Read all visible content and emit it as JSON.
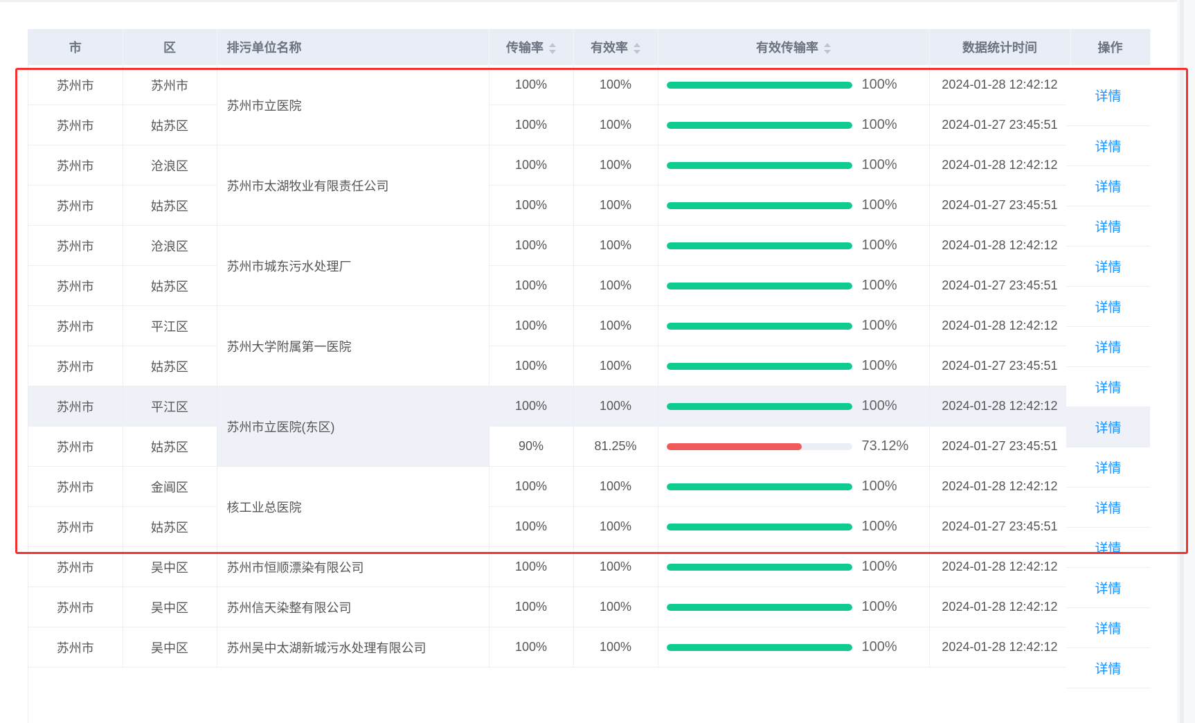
{
  "headers": {
    "city": "市",
    "district": "区",
    "name": "排污单位名称",
    "trans_rate": "传输率",
    "valid_rate": "有效率",
    "valid_trans_rate": "有效传输率",
    "stat_time": "数据统计时间",
    "action": "操作"
  },
  "colors": {
    "good": "#0ecb8f",
    "bad": "#f15a5a",
    "link": "#1890ff",
    "highlight_box": "#f23030"
  },
  "groups": [
    {
      "name": "苏州市立医院",
      "rows": [
        {
          "city": "苏州市",
          "district": "苏州市",
          "trans": "100%",
          "valid": "100%",
          "vtr": "100%",
          "vtr_value": 100,
          "time": "2024-01-28 12:42:12"
        },
        {
          "city": "苏州市",
          "district": "姑苏区",
          "trans": "100%",
          "valid": "100%",
          "vtr": "100%",
          "vtr_value": 100,
          "time": "2024-01-27 23:45:51"
        }
      ]
    },
    {
      "name": "苏州市太湖牧业有限责任公司",
      "rows": [
        {
          "city": "苏州市",
          "district": "沧浪区",
          "trans": "100%",
          "valid": "100%",
          "vtr": "100%",
          "vtr_value": 100,
          "time": "2024-01-28 12:42:12"
        },
        {
          "city": "苏州市",
          "district": "姑苏区",
          "trans": "100%",
          "valid": "100%",
          "vtr": "100%",
          "vtr_value": 100,
          "time": "2024-01-27 23:45:51"
        }
      ]
    },
    {
      "name": "苏州市城东污水处理厂",
      "rows": [
        {
          "city": "苏州市",
          "district": "沧浪区",
          "trans": "100%",
          "valid": "100%",
          "vtr": "100%",
          "vtr_value": 100,
          "time": "2024-01-28 12:42:12"
        },
        {
          "city": "苏州市",
          "district": "姑苏区",
          "trans": "100%",
          "valid": "100%",
          "vtr": "100%",
          "vtr_value": 100,
          "time": "2024-01-27 23:45:51"
        }
      ]
    },
    {
      "name": "苏州大学附属第一医院",
      "rows": [
        {
          "city": "苏州市",
          "district": "平江区",
          "trans": "100%",
          "valid": "100%",
          "vtr": "100%",
          "vtr_value": 100,
          "time": "2024-01-28 12:42:12"
        },
        {
          "city": "苏州市",
          "district": "姑苏区",
          "trans": "100%",
          "valid": "100%",
          "vtr": "100%",
          "vtr_value": 100,
          "time": "2024-01-27 23:45:51"
        }
      ]
    },
    {
      "name": "苏州市立医院(东区)",
      "highlight": true,
      "rows": [
        {
          "city": "苏州市",
          "district": "平江区",
          "trans": "100%",
          "valid": "100%",
          "vtr": "100%",
          "vtr_value": 100,
          "time": "2024-01-28 12:42:12",
          "highlight": true
        },
        {
          "city": "苏州市",
          "district": "姑苏区",
          "trans": "90%",
          "valid": "81.25%",
          "vtr": "73.12%",
          "vtr_value": 73.12,
          "time": "2024-01-27 23:45:51"
        }
      ]
    },
    {
      "name": "核工业总医院",
      "rows": [
        {
          "city": "苏州市",
          "district": "金阊区",
          "trans": "100%",
          "valid": "100%",
          "vtr": "100%",
          "vtr_value": 100,
          "time": "2024-01-28 12:42:12"
        },
        {
          "city": "苏州市",
          "district": "姑苏区",
          "trans": "100%",
          "valid": "100%",
          "vtr": "100%",
          "vtr_value": 100,
          "time": "2024-01-27 23:45:51"
        }
      ]
    },
    {
      "name": "苏州市恒顺漂染有限公司",
      "rows": [
        {
          "city": "苏州市",
          "district": "吴中区",
          "trans": "100%",
          "valid": "100%",
          "vtr": "100%",
          "vtr_value": 100,
          "time": "2024-01-28 12:42:12"
        }
      ]
    },
    {
      "name": "苏州信天染整有限公司",
      "rows": [
        {
          "city": "苏州市",
          "district": "吴中区",
          "trans": "100%",
          "valid": "100%",
          "vtr": "100%",
          "vtr_value": 100,
          "time": "2024-01-28 12:42:12"
        }
      ]
    },
    {
      "name": "苏州吴中太湖新城污水处理有限公司",
      "rows": [
        {
          "city": "苏州市",
          "district": "吴中区",
          "trans": "100%",
          "valid": "100%",
          "vtr": "100%",
          "vtr_value": 100,
          "time": "2024-01-28 12:42:12"
        }
      ]
    }
  ],
  "actions": [
    {
      "label": "详情"
    },
    {
      "label": "详情"
    },
    {
      "label": "详情"
    },
    {
      "label": "详情"
    },
    {
      "label": "详情"
    },
    {
      "label": "详情"
    },
    {
      "label": "详情"
    },
    {
      "label": "详情"
    },
    {
      "label": "详情",
      "highlight": true
    },
    {
      "label": "详情"
    },
    {
      "label": "详情"
    },
    {
      "label": "详情"
    },
    {
      "label": "详情"
    },
    {
      "label": "详情"
    },
    {
      "label": "详情"
    }
  ]
}
